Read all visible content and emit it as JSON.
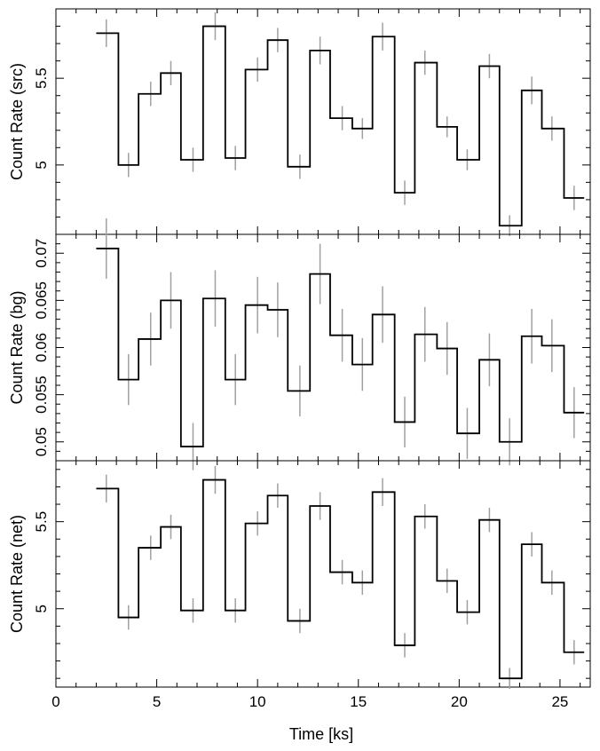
{
  "chart_data": {
    "type": "line",
    "style": "step-with-error-bars",
    "xlabel": "Time [ks]",
    "x_ticks": [
      0,
      5,
      10,
      15,
      20,
      25
    ],
    "xlim": [
      0,
      26.5
    ],
    "bin_centers": [
      2.5,
      3.6,
      4.7,
      5.7,
      6.8,
      7.9,
      8.9,
      10.0,
      11.0,
      12.1,
      13.1,
      14.2,
      15.2,
      16.2,
      17.3,
      18.3,
      19.4,
      20.4,
      21.5,
      22.5,
      23.6,
      24.6,
      25.7
    ],
    "bin_edges": [
      2.0,
      3.1,
      4.1,
      5.2,
      6.2,
      7.3,
      8.4,
      9.4,
      10.5,
      11.5,
      12.6,
      13.6,
      14.7,
      15.7,
      16.8,
      17.8,
      18.9,
      19.9,
      21.0,
      22.0,
      23.1,
      24.1,
      25.2,
      26.2
    ],
    "panels": [
      {
        "name": "src",
        "ylabel": "Count Rate (src)",
        "ylim": [
          4.6,
          5.9
        ],
        "y_ticks": [
          5,
          5.5
        ],
        "y_ticklabels": [
          "5",
          "5.5"
        ],
        "values": [
          5.76,
          5.0,
          5.41,
          5.53,
          5.03,
          5.8,
          5.04,
          5.55,
          5.72,
          4.99,
          5.66,
          5.27,
          5.21,
          5.74,
          4.84,
          5.59,
          5.22,
          5.03,
          5.57,
          4.65,
          5.43,
          5.21,
          4.81
        ],
        "errors": [
          0.08,
          0.07,
          0.07,
          0.07,
          0.07,
          0.08,
          0.07,
          0.07,
          0.07,
          0.07,
          0.08,
          0.07,
          0.06,
          0.08,
          0.07,
          0.07,
          0.06,
          0.06,
          0.07,
          0.06,
          0.08,
          0.07,
          0.07
        ]
      },
      {
        "name": "bg",
        "ylabel": "Count Rate (bg)",
        "ylim": [
          0.048,
          0.072
        ],
        "y_ticks": [
          0.05,
          0.055,
          0.06,
          0.065,
          0.07
        ],
        "y_ticklabels": [
          "0.05",
          "0.055",
          "0.06",
          "0.065",
          "0.07"
        ],
        "values": [
          0.0705,
          0.0566,
          0.0609,
          0.065,
          0.0495,
          0.0652,
          0.0566,
          0.0645,
          0.064,
          0.0554,
          0.0678,
          0.0613,
          0.0582,
          0.0635,
          0.0521,
          0.0614,
          0.0599,
          0.0509,
          0.0587,
          0.05,
          0.0612,
          0.0602,
          0.0531
        ],
        "errors": [
          0.0032,
          0.0027,
          0.0028,
          0.003,
          0.0025,
          0.003,
          0.0027,
          0.003,
          0.0029,
          0.0027,
          0.0032,
          0.0028,
          0.0028,
          0.003,
          0.0027,
          0.0029,
          0.0028,
          0.0027,
          0.0028,
          0.0025,
          0.0029,
          0.0028,
          0.0027
        ]
      },
      {
        "name": "net",
        "ylabel": "Count Rate (net)",
        "ylim": [
          4.55,
          5.85
        ],
        "y_ticks": [
          5,
          5.5
        ],
        "y_ticklabels": [
          "5",
          "5.5"
        ],
        "values": [
          5.69,
          4.95,
          5.35,
          5.47,
          4.99,
          5.74,
          4.99,
          5.49,
          5.65,
          4.93,
          5.59,
          5.21,
          5.15,
          5.67,
          4.79,
          5.53,
          5.16,
          4.98,
          5.51,
          4.6,
          5.37,
          5.15,
          4.75
        ],
        "errors": [
          0.08,
          0.07,
          0.07,
          0.07,
          0.07,
          0.08,
          0.07,
          0.07,
          0.07,
          0.07,
          0.08,
          0.07,
          0.07,
          0.08,
          0.07,
          0.07,
          0.07,
          0.07,
          0.07,
          0.06,
          0.07,
          0.07,
          0.07
        ]
      }
    ]
  }
}
